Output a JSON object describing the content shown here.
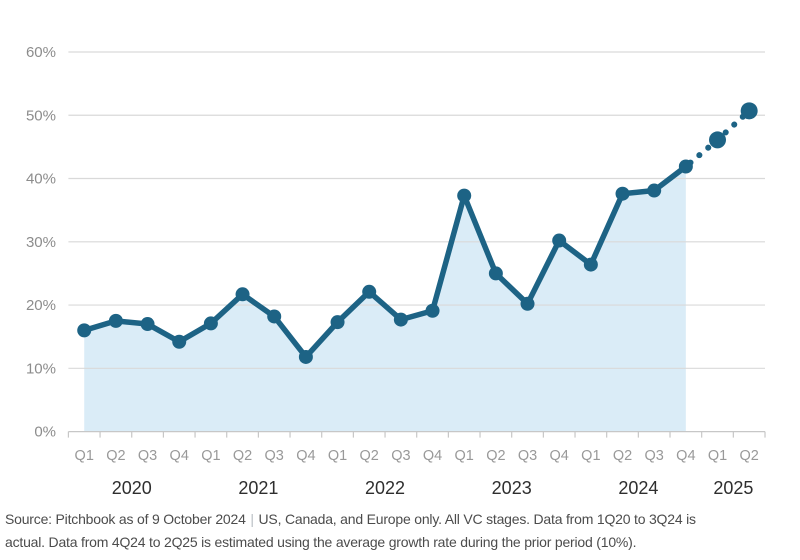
{
  "page": {
    "background": "#ffffff"
  },
  "chart_data": {
    "type": "line",
    "variant": "area-under-line, dotted for estimated tail",
    "title": "",
    "legend": "none",
    "grid": "horizontal",
    "ylim": [
      0,
      60
    ],
    "yticks": [
      0,
      10,
      20,
      30,
      40,
      50,
      60
    ],
    "ytick_labels": [
      "0%",
      "10%",
      "20%",
      "30%",
      "40%",
      "50%",
      "60%"
    ],
    "x_groups": [
      {
        "year": "2020",
        "quarters": [
          "Q1",
          "Q2",
          "Q3",
          "Q4"
        ]
      },
      {
        "year": "2021",
        "quarters": [
          "Q1",
          "Q2",
          "Q3",
          "Q4"
        ]
      },
      {
        "year": "2022",
        "quarters": [
          "Q1",
          "Q2",
          "Q3",
          "Q4"
        ]
      },
      {
        "year": "2023",
        "quarters": [
          "Q1",
          "Q2",
          "Q3",
          "Q4"
        ]
      },
      {
        "year": "2024",
        "quarters": [
          "Q1",
          "Q2",
          "Q3",
          "Q4"
        ]
      },
      {
        "year": "2025",
        "quarters": [
          "Q1",
          "Q2"
        ]
      }
    ],
    "points": [
      {
        "quarter": "Q1",
        "year": "2020",
        "value": 16.0,
        "estimated": false
      },
      {
        "quarter": "Q2",
        "year": "2020",
        "value": 17.5,
        "estimated": false
      },
      {
        "quarter": "Q3",
        "year": "2020",
        "value": 17.0,
        "estimated": false
      },
      {
        "quarter": "Q4",
        "year": "2020",
        "value": 14.2,
        "estimated": false
      },
      {
        "quarter": "Q1",
        "year": "2021",
        "value": 17.1,
        "estimated": false
      },
      {
        "quarter": "Q2",
        "year": "2021",
        "value": 21.7,
        "estimated": false
      },
      {
        "quarter": "Q3",
        "year": "2021",
        "value": 18.2,
        "estimated": false
      },
      {
        "quarter": "Q4",
        "year": "2021",
        "value": 11.8,
        "estimated": false
      },
      {
        "quarter": "Q1",
        "year": "2022",
        "value": 17.3,
        "estimated": false
      },
      {
        "quarter": "Q2",
        "year": "2022",
        "value": 22.1,
        "estimated": false
      },
      {
        "quarter": "Q3",
        "year": "2022",
        "value": 17.7,
        "estimated": false
      },
      {
        "quarter": "Q4",
        "year": "2022",
        "value": 19.1,
        "estimated": false
      },
      {
        "quarter": "Q1",
        "year": "2023",
        "value": 37.3,
        "estimated": false
      },
      {
        "quarter": "Q2",
        "year": "2023",
        "value": 25.0,
        "estimated": false
      },
      {
        "quarter": "Q3",
        "year": "2023",
        "value": 20.2,
        "estimated": false
      },
      {
        "quarter": "Q4",
        "year": "2023",
        "value": 30.2,
        "estimated": false
      },
      {
        "quarter": "Q1",
        "year": "2024",
        "value": 26.4,
        "estimated": false
      },
      {
        "quarter": "Q2",
        "year": "2024",
        "value": 37.6,
        "estimated": false
      },
      {
        "quarter": "Q3",
        "year": "2024",
        "value": 38.1,
        "estimated": false
      },
      {
        "quarter": "Q4",
        "year": "2024",
        "value": 41.9,
        "estimated": true
      },
      {
        "quarter": "Q1",
        "year": "2025",
        "value": 46.1,
        "estimated": true
      },
      {
        "quarter": "Q2",
        "year": "2025",
        "value": 50.7,
        "estimated": true
      }
    ],
    "colors": {
      "line": "#1d6385",
      "area_fill": "#daecf7",
      "gridline": "#d9d9d9",
      "axis": "#c7c7c7",
      "ytick_label": "#8c8c8c",
      "quarter_label": "#999999",
      "year_label": "#2e2e2e"
    }
  },
  "footer": {
    "line1_a": "Source: Pitchbook as of 9 October 2024",
    "separator": "|",
    "line1_b": "US, Canada, and Europe only. All VC stages. Data from 1Q20 to 3Q24 is",
    "line2": "actual. Data from 4Q24 to 2Q25 is estimated using the average growth rate during the prior period (10%)."
  }
}
